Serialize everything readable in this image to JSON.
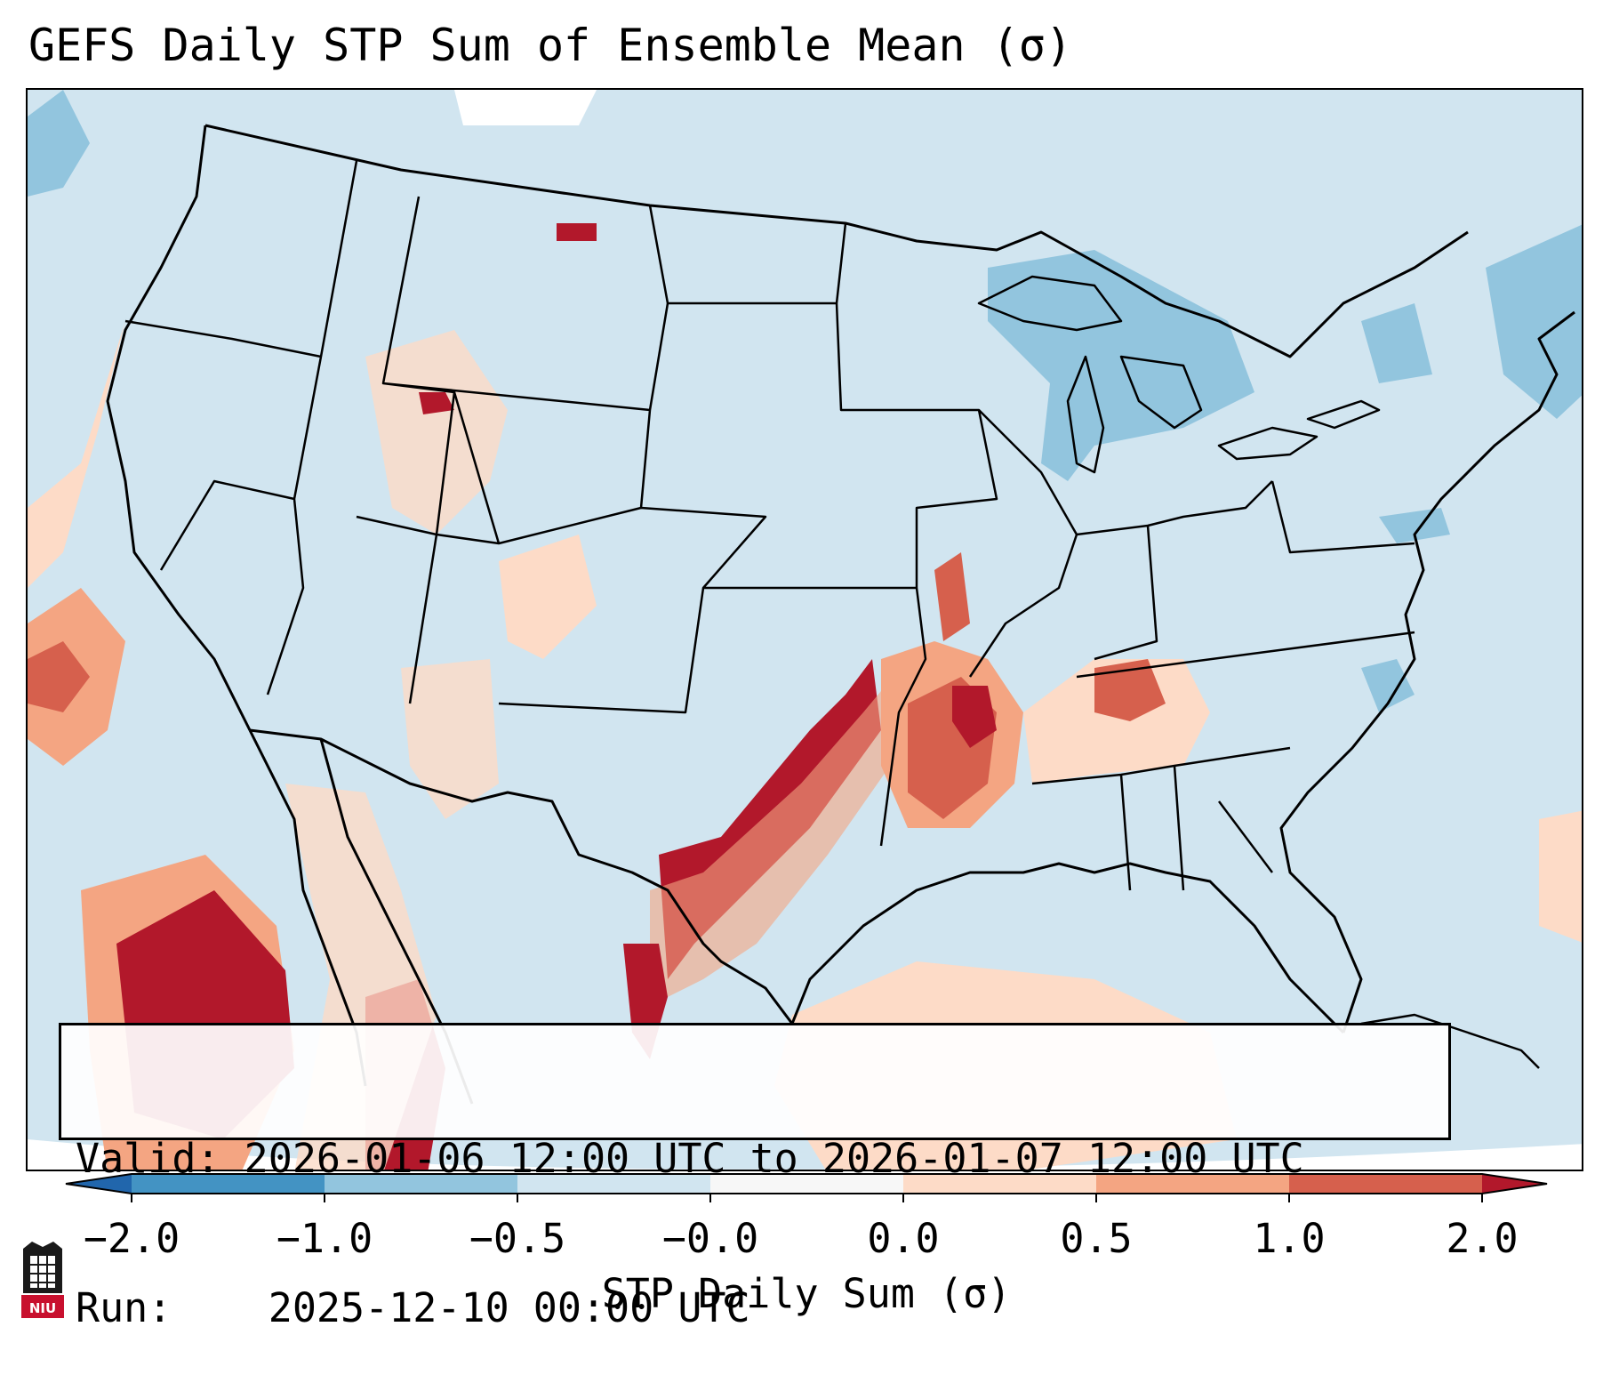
{
  "title": "GEFS Daily STP Sum of Ensemble Mean (σ)",
  "info": {
    "valid_label": "Valid:",
    "valid_value": "2026-01-06 12:00 UTC to 2026-01-07 12:00 UTC",
    "run_label": "Run:",
    "run_value": "2025-12-10 00:00 UTC"
  },
  "colorbar": {
    "label": "STP Daily Sum (σ)",
    "ticks": [
      "−2.0",
      "−1.0",
      "−0.5",
      "−0.0",
      "0.0",
      "0.5",
      "1.0",
      "2.0"
    ],
    "colors": {
      "lt_-2": "#2166ac",
      "-2_-1": "#4393c3",
      "-1_-0.5": "#92c5de",
      "-0.5_-0": "#d1e5f0",
      "-0_0": "#f7f7f7",
      "0_0.5": "#fddbc7",
      "0.5_1": "#f4a582",
      "1_2": "#d6604d",
      "gt_2": "#b2182b"
    }
  },
  "map": {
    "background_color": "#d1e5f0",
    "outside_color": "#ffffff",
    "region": "Contiguous United States"
  },
  "logo": {
    "text": "NIU"
  }
}
